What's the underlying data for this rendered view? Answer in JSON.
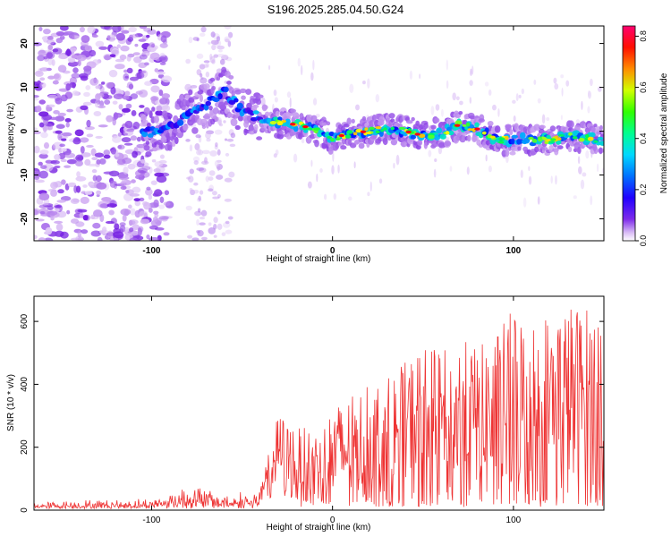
{
  "title": "S196.2025.285.04.50.G24",
  "chart_data": [
    {
      "type": "heatmap",
      "xlabel": "Height of straight line (km)",
      "ylabel": "Frequency (Hz)",
      "xlim": [
        -165,
        150
      ],
      "ylim": [
        -25,
        24
      ],
      "xticks": [
        -100,
        0,
        100
      ],
      "yticks": [
        -20,
        -10,
        0,
        10,
        20
      ],
      "colorbar": {
        "label": "Normalized spectral amplitude",
        "range": [
          0,
          0.84
        ],
        "ticks": [
          "0.0",
          "0.2",
          "0.4",
          "0.6",
          "0.8"
        ],
        "colors": [
          "#ffffff",
          "#c79cf0",
          "#6a0ee0",
          "#0000ff",
          "#00b4ff",
          "#00e8c0",
          "#00ff40",
          "#ffff00",
          "#ff8000",
          "#ff0000",
          "#ff0060"
        ]
      },
      "ridge": {
        "description": "dominant frequency vs height",
        "x": [
          -100,
          -90,
          -80,
          -70,
          -60,
          -50,
          -40,
          -30,
          -20,
          -10,
          0,
          10,
          20,
          30,
          40,
          50,
          60,
          70,
          80,
          90,
          100,
          110,
          120,
          130,
          140,
          150
        ],
        "y": [
          0,
          1,
          4,
          6,
          9,
          5,
          3,
          2,
          1.5,
          0.5,
          -1.5,
          -0.5,
          0,
          0.5,
          0,
          -1,
          -0.5,
          1.5,
          0.5,
          -2,
          -2,
          -2,
          -2,
          -1,
          -1.5,
          -2
        ]
      }
    },
    {
      "type": "line",
      "xlabel": "Height of straight line (km)",
      "ylabel": "SNR (10 * v/v)",
      "xlim": [
        -165,
        150
      ],
      "ylim": [
        0,
        680
      ],
      "xticks": [
        -100,
        0,
        100
      ],
      "yticks": [
        0,
        200,
        400,
        600
      ],
      "color": "#ee3333",
      "envelope": {
        "x": [
          -165,
          -100,
          -80,
          -60,
          -40,
          -30,
          -20,
          -10,
          0,
          10,
          20,
          30,
          40,
          50,
          60,
          70,
          80,
          90,
          100,
          110,
          120,
          130,
          140,
          150
        ],
        "max": [
          30,
          40,
          100,
          60,
          70,
          310,
          270,
          250,
          330,
          360,
          400,
          420,
          470,
          530,
          500,
          550,
          520,
          560,
          650,
          610,
          640,
          660,
          650,
          640
        ],
        "min": [
          5,
          5,
          5,
          5,
          5,
          60,
          10,
          10,
          10,
          10,
          10,
          10,
          10,
          10,
          10,
          10,
          10,
          10,
          10,
          10,
          10,
          10,
          10,
          10
        ]
      }
    }
  ]
}
